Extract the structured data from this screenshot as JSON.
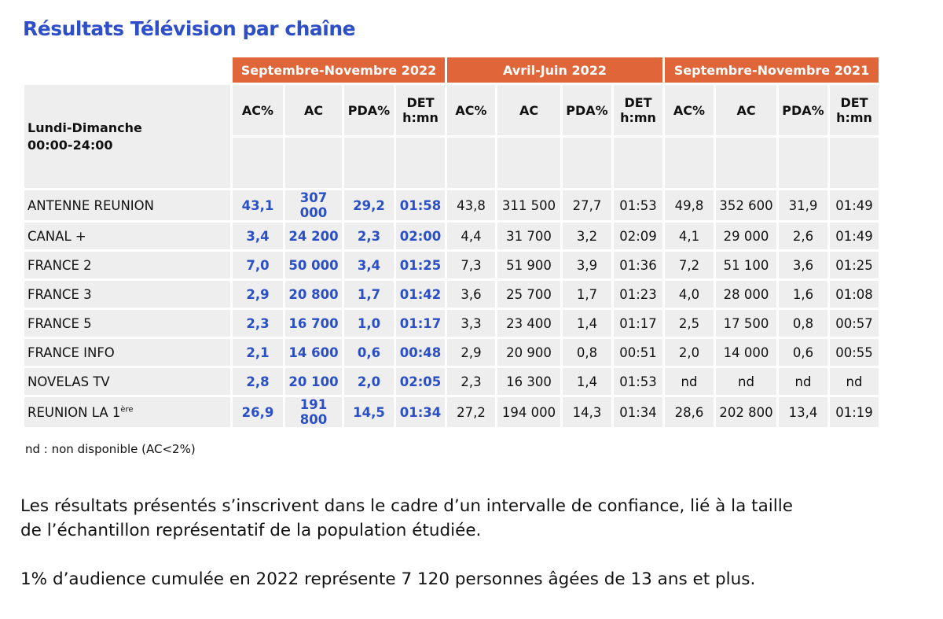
{
  "title": "Résultats Télévision par chaîne",
  "periods": [
    "Septembre-Novembre 2022",
    "Avril-Juin 2022",
    "Septembre-Novembre 2021"
  ],
  "columns": [
    "AC%",
    "AC",
    "PDA%",
    "DET",
    "h:mn"
  ],
  "row_header": {
    "line1": "Lundi-Dimanche",
    "line2": "00:00-24:00"
  },
  "rows": [
    {
      "name": "ANTENNE REUNION",
      "sup": "",
      "v": [
        "43,1",
        "307 000",
        "29,2",
        "01:58",
        "43,8",
        "311 500",
        "27,7",
        "01:53",
        "49,8",
        "352 600",
        "31,9",
        "01:49"
      ]
    },
    {
      "name": "CANAL +",
      "sup": "",
      "v": [
        "3,4",
        "24 200",
        "2,3",
        "02:00",
        "4,4",
        "31 700",
        "3,2",
        "02:09",
        "4,1",
        "29 000",
        "2,6",
        "01:49"
      ]
    },
    {
      "name": "FRANCE 2",
      "sup": "",
      "v": [
        "7,0",
        "50 000",
        "3,4",
        "01:25",
        "7,3",
        "51 900",
        "3,9",
        "01:36",
        "7,2",
        "51 100",
        "3,6",
        "01:25"
      ]
    },
    {
      "name": "FRANCE 3",
      "sup": "",
      "v": [
        "2,9",
        "20 800",
        "1,7",
        "01:42",
        "3,6",
        "25 700",
        "1,7",
        "01:23",
        "4,0",
        "28 000",
        "1,6",
        "01:08"
      ]
    },
    {
      "name": "FRANCE 5",
      "sup": "",
      "v": [
        "2,3",
        "16 700",
        "1,0",
        "01:17",
        "3,3",
        "23 400",
        "1,4",
        "01:17",
        "2,5",
        "17 500",
        "0,8",
        "00:57"
      ]
    },
    {
      "name": "FRANCE INFO",
      "sup": "",
      "v": [
        "2,1",
        "14 600",
        "0,6",
        "00:48",
        "2,9",
        "20 900",
        "0,8",
        "00:51",
        "2,0",
        "14 000",
        "0,6",
        "00:55"
      ]
    },
    {
      "name": "NOVELAS TV",
      "sup": "",
      "v": [
        "2,8",
        "20 100",
        "2,0",
        "02:05",
        "2,3",
        "16 300",
        "1,4",
        "01:53",
        "nd",
        "nd",
        "nd",
        "nd"
      ]
    },
    {
      "name": "REUNION LA 1",
      "sup": "ère",
      "v": [
        "26,9",
        "191 800",
        "14,5",
        "01:34",
        "27,2",
        "194 000",
        "14,3",
        "01:34",
        "28,6",
        "202 800",
        "13,4",
        "01:19"
      ]
    }
  ],
  "note": "nd : non disponible (AC<2%)",
  "paragraph1_line1": "Les résultats présentés s’inscrivent dans le cadre d’un intervalle de confiance, lié à la taille",
  "paragraph1_line2": "de l’échantillon représentatif de la population étudiée.",
  "paragraph2": "1% d’audience cumulée en 2022 représente 7 120 personnes âgées de 13 ans et plus.",
  "colors": {
    "accent": "#e0663a",
    "title": "#2f4fc9",
    "current": "#2b4fc4",
    "cell": "#eeeeee"
  }
}
